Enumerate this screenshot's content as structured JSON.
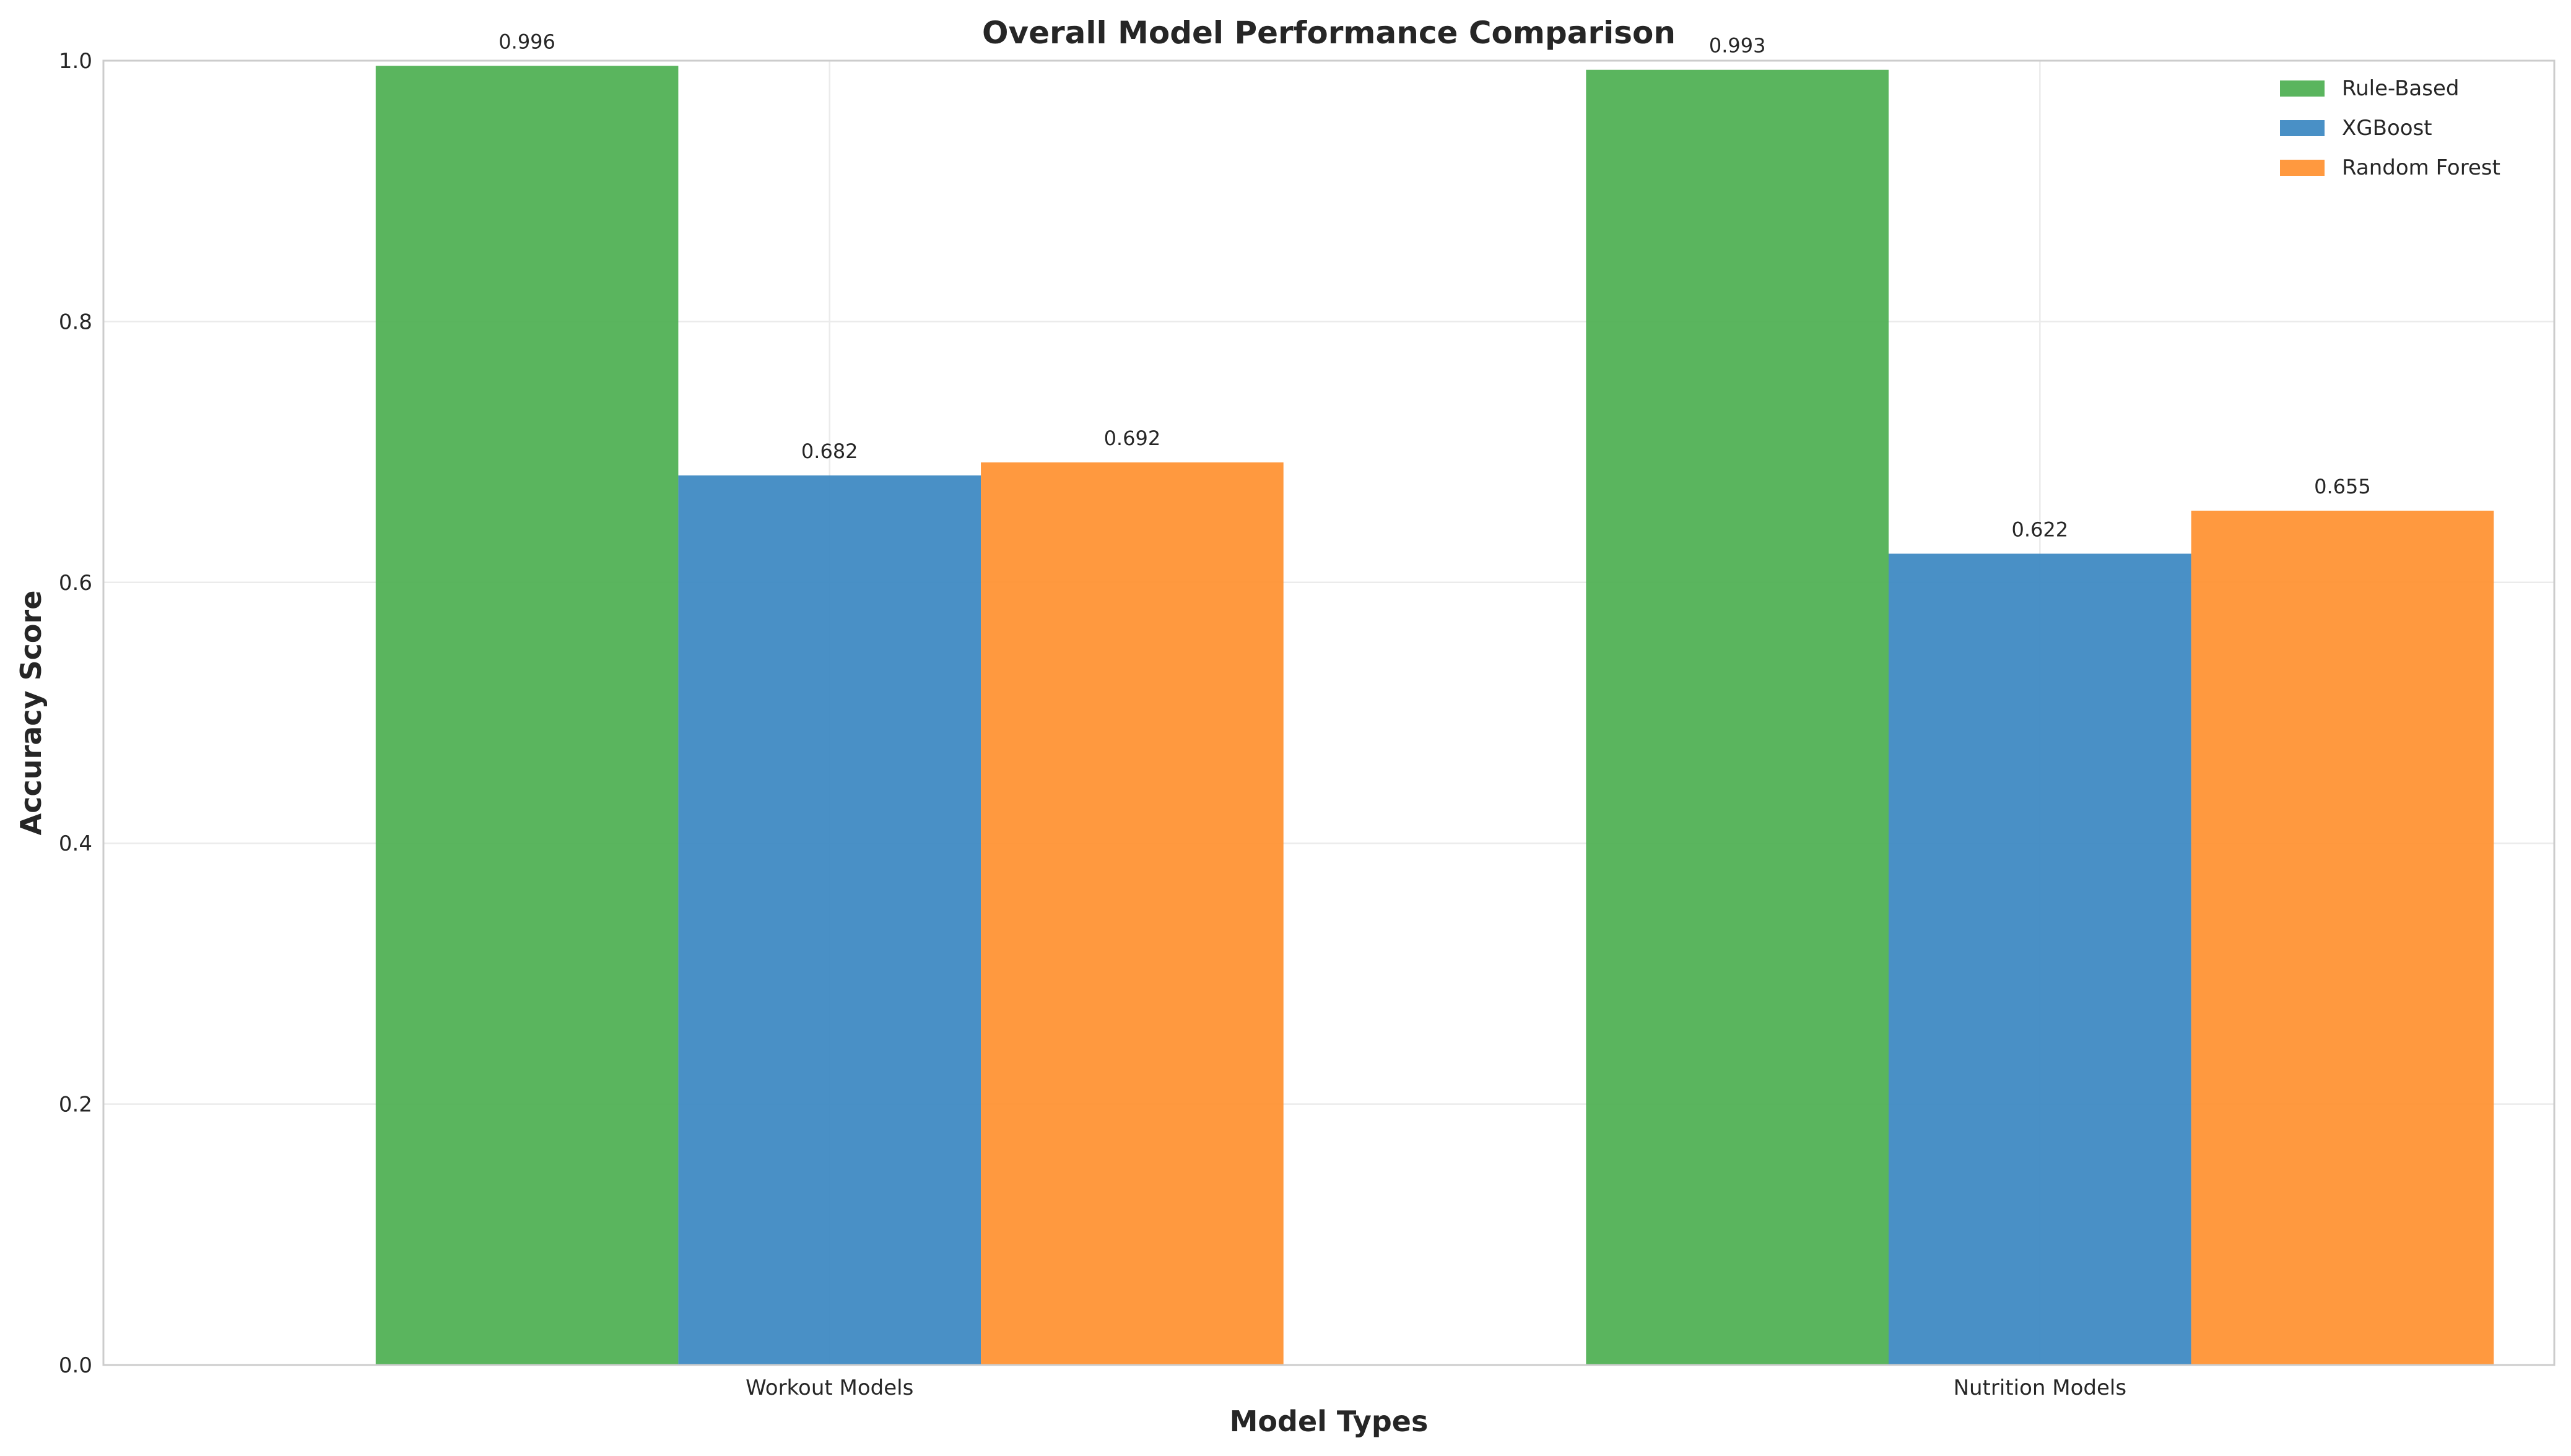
{
  "chart_data": {
    "type": "bar",
    "title": "Overall Model Performance Comparison",
    "xlabel": "Model Types",
    "ylabel": "Accuracy Score",
    "categories": [
      "Workout Models",
      "Nutrition Models"
    ],
    "series": [
      {
        "name": "Rule-Based",
        "values": [
          0.996,
          0.993
        ],
        "color": "#4caf50",
        "labels": [
          "0.996",
          "0.993"
        ]
      },
      {
        "name": "XGBoost",
        "values": [
          0.682,
          0.622
        ],
        "color": "#3a87c1",
        "labels": [
          "0.682",
          "0.622"
        ]
      },
      {
        "name": "Random Forest",
        "values": [
          0.692,
          0.655
        ],
        "color": "#ff902f",
        "labels": [
          "0.692",
          "0.655"
        ]
      }
    ],
    "ylim": [
      0,
      1.0
    ],
    "yticks": [
      0.0,
      0.2,
      0.4,
      0.6,
      0.8,
      1.0
    ],
    "ytick_labels": [
      "0.0",
      "0.2",
      "0.4",
      "0.6",
      "0.8",
      "1.0"
    ],
    "grid": true,
    "legend_position": "top-right"
  }
}
